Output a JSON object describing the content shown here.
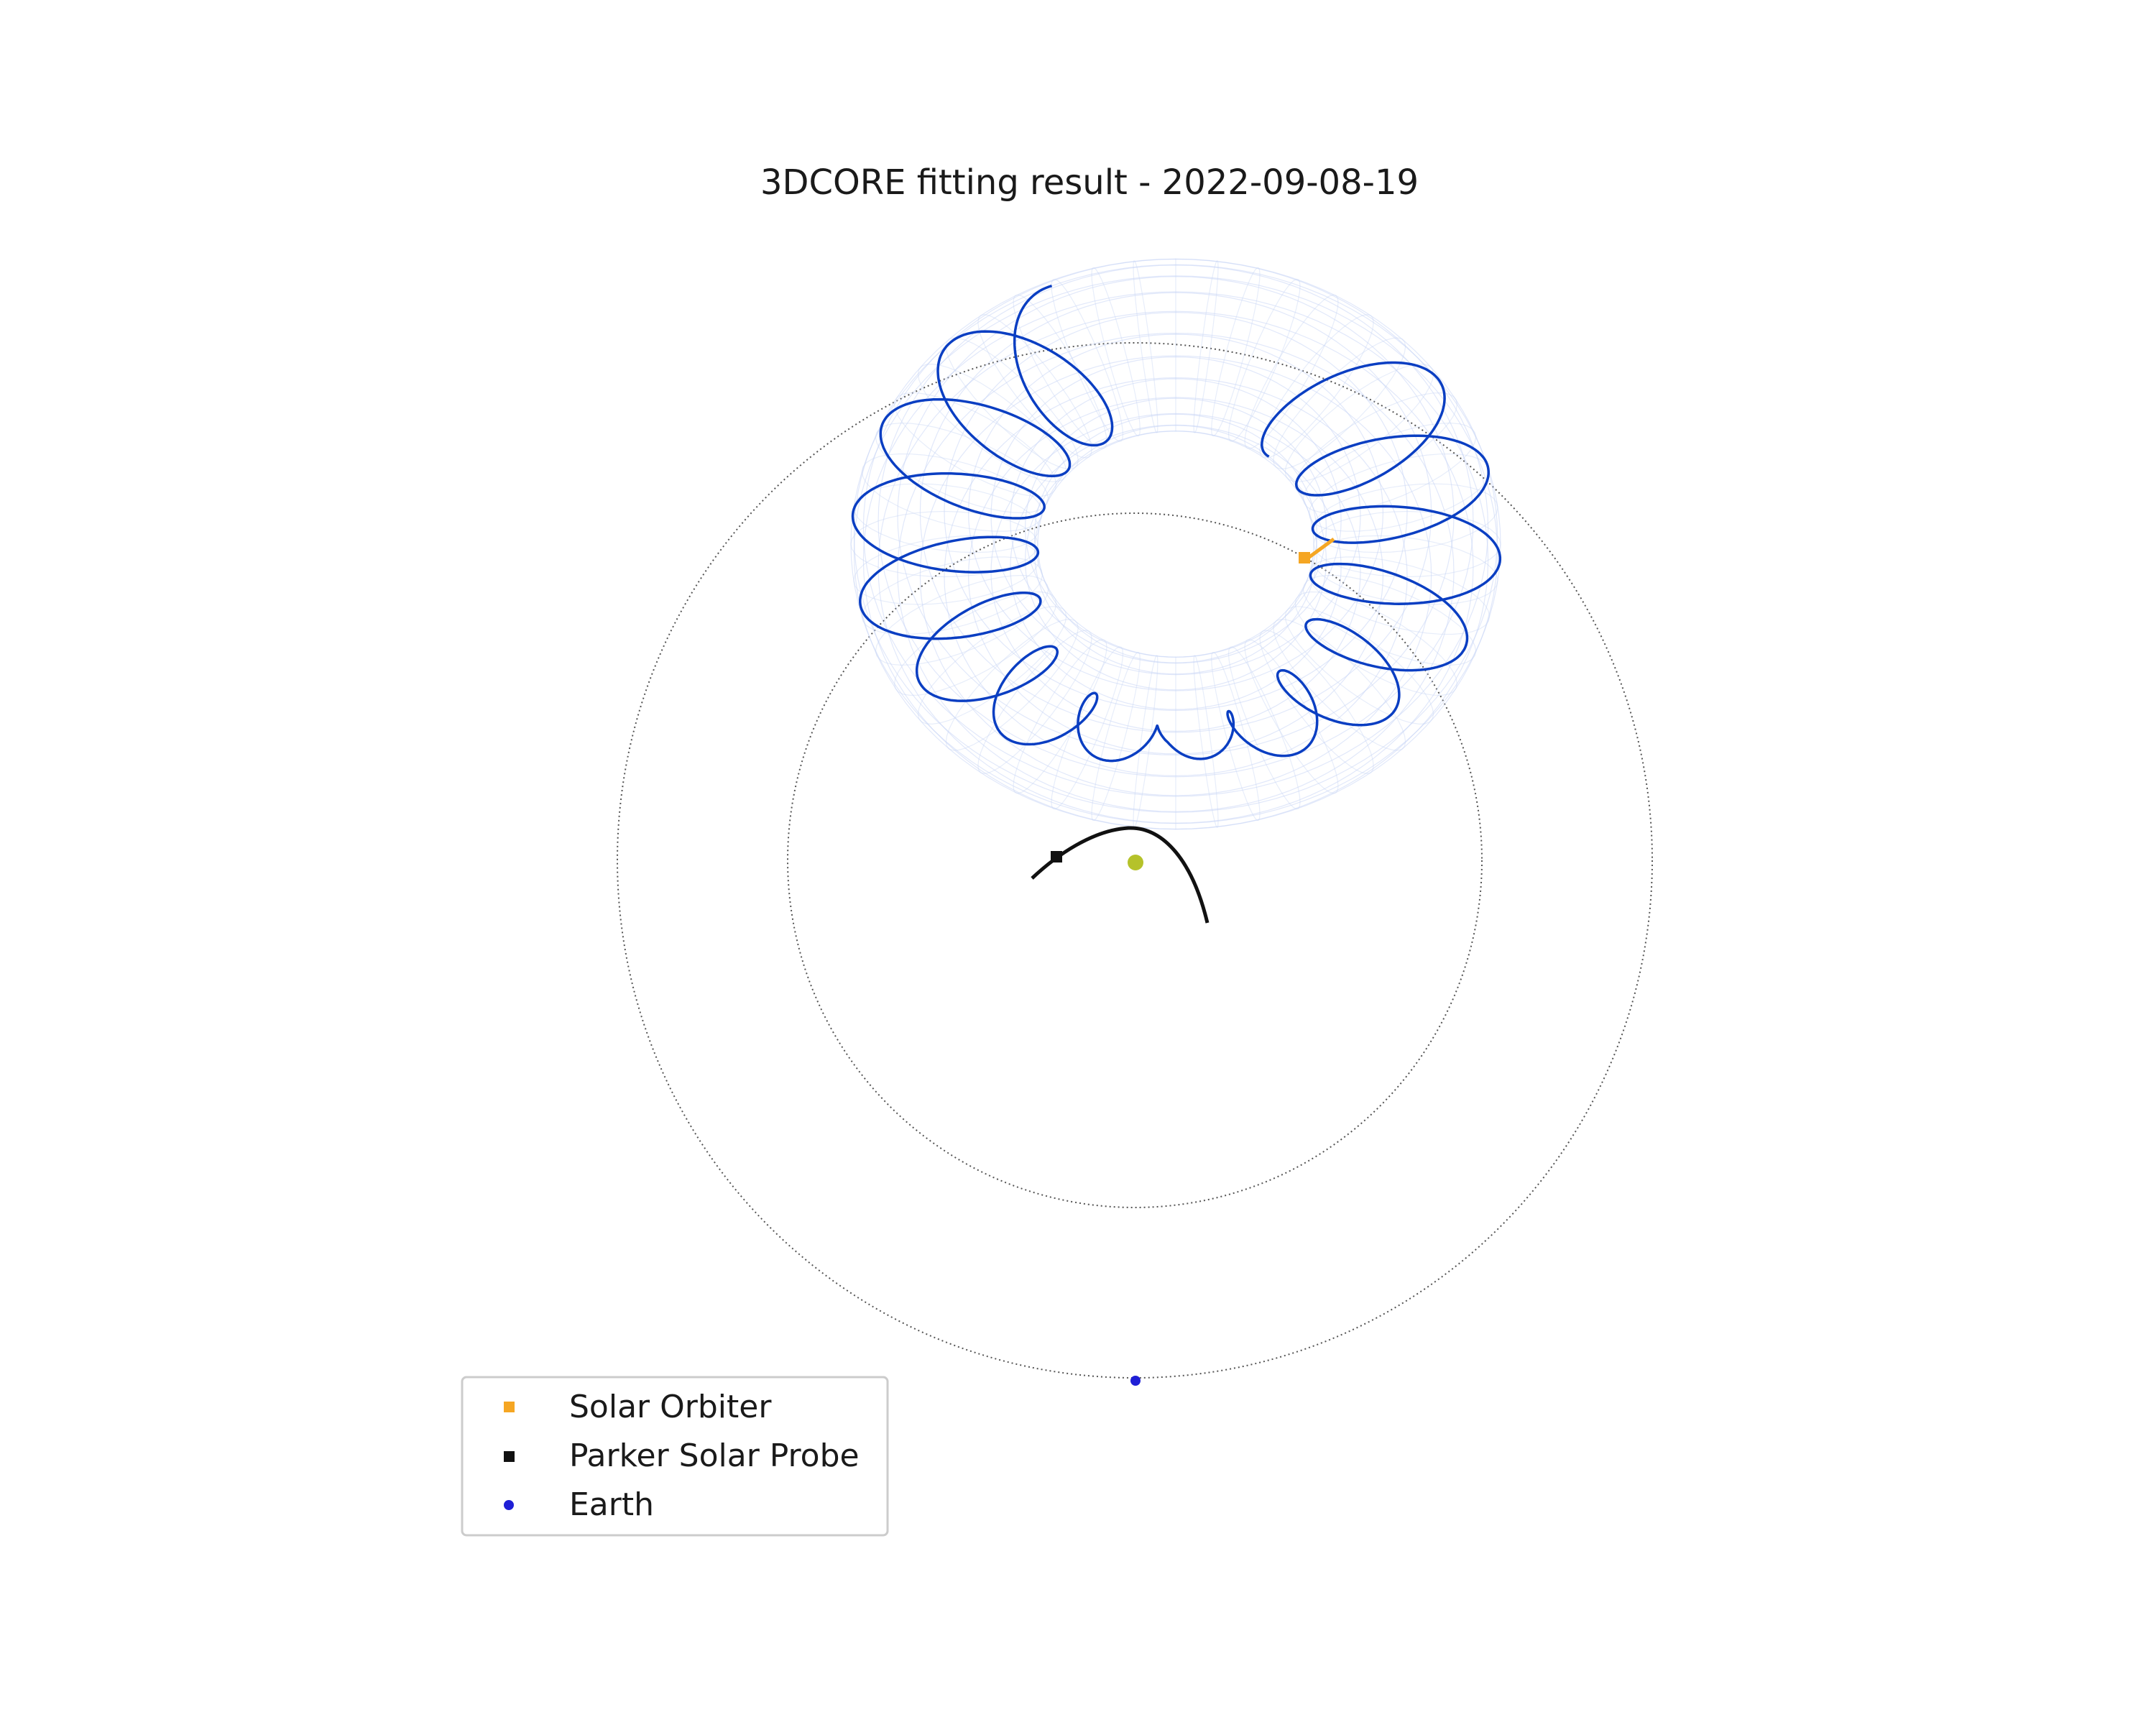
{
  "figure": {
    "title": "3DCORE fitting result - 2022-09-08-19"
  },
  "legend": {
    "placement": "lower-left",
    "entries": [
      {
        "label": "Solar Orbiter",
        "color": "#f5a623",
        "marker": "square"
      },
      {
        "label": "Parker Solar Probe",
        "color": "#111111",
        "marker": "square"
      },
      {
        "label": "Earth",
        "color": "#1f1fd6",
        "marker": "circle"
      }
    ]
  },
  "colors": {
    "flux_rope_wireframe": "#c9d6f5",
    "field_line": "#0a3ec2",
    "orbit_reference": "#555555",
    "psp_trajectory": "#111111",
    "solo_trajectory": "#f5a623",
    "sun": "#b5c22a"
  },
  "icons": {
    "sun": "sun-marker-icon",
    "solo": "solar-orbiter-marker-icon",
    "psp": "parker-solar-probe-marker-icon",
    "earth": "earth-marker-icon"
  }
}
